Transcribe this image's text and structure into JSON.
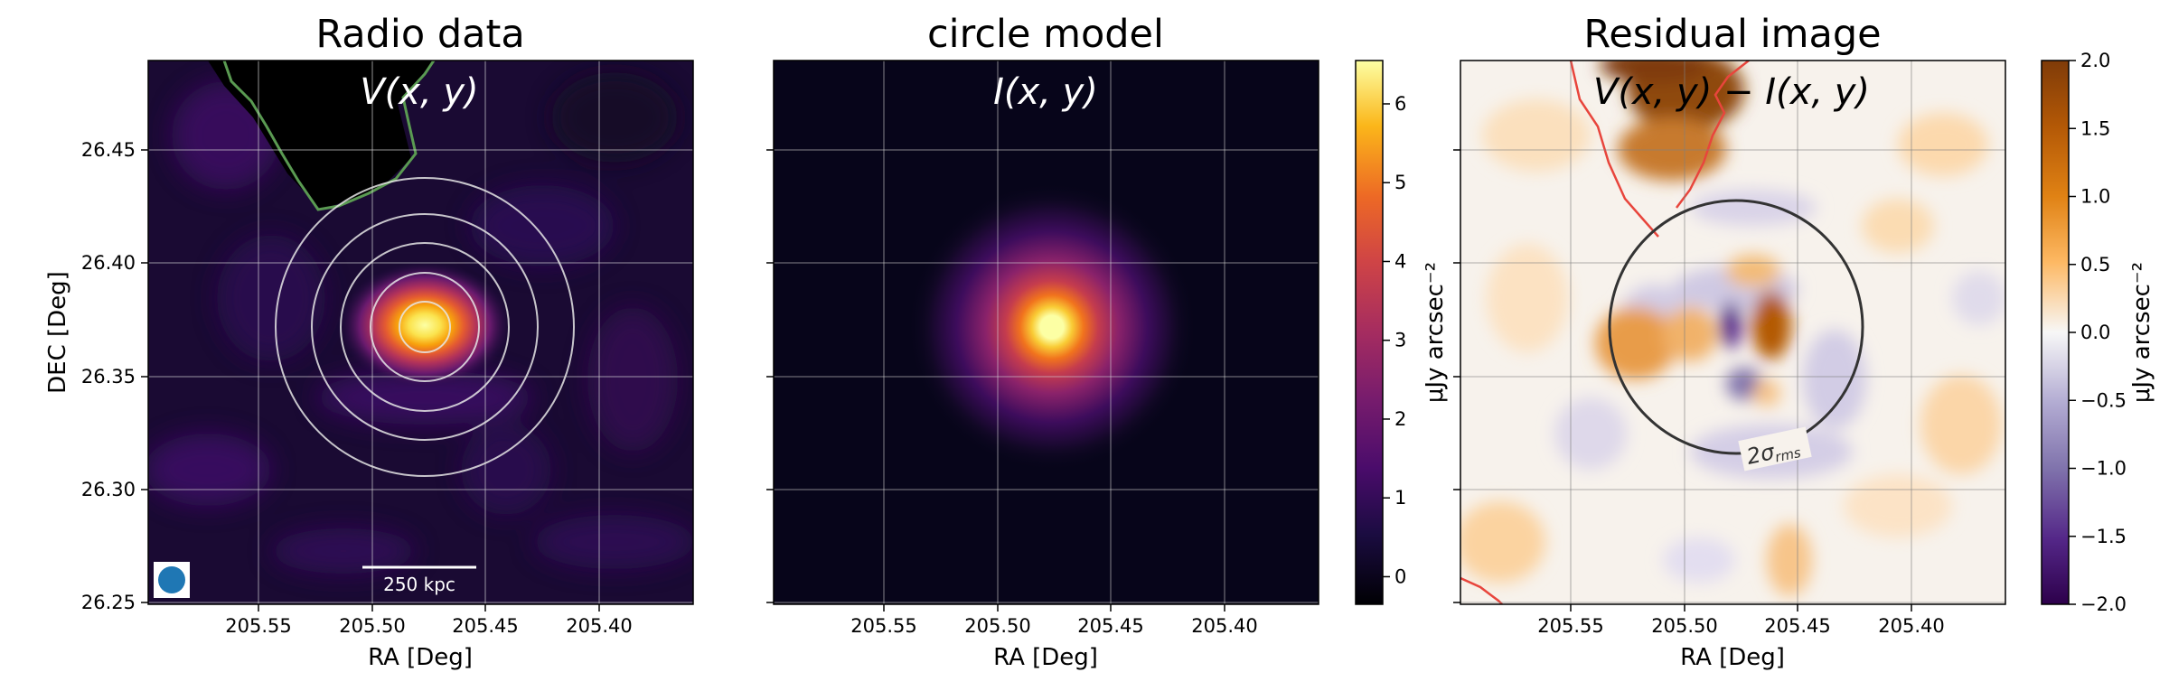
{
  "chart_data": [
    {
      "type": "heatmap",
      "title": "Radio data",
      "annotation": "V(x, y)",
      "xlabel": "RA [Deg]",
      "ylabel": "DEC [Deg]",
      "xlim": [
        205.605,
        205.345
      ],
      "ylim": [
        26.247,
        26.488
      ],
      "x_ticks": [
        205.55,
        205.5,
        205.45,
        205.4
      ],
      "y_ticks": [
        26.25,
        26.3,
        26.35,
        26.4,
        26.45
      ],
      "x_tick_labels": [
        "205.55",
        "205.50",
        "205.45",
        "205.40"
      ],
      "y_tick_labels": [
        "26.25",
        "26.30",
        "26.35",
        "26.40",
        "26.45"
      ],
      "grid": true,
      "colormap": "inferno",
      "source_center": {
        "ra": 205.473,
        "dec": 26.372
      },
      "contour_ring_radii_deg": [
        0.011,
        0.024,
        0.037,
        0.05,
        0.061
      ],
      "scalebar_label": "250 kpc",
      "beam": "filled-circle-lower-left"
    },
    {
      "type": "heatmap",
      "title": "circle model",
      "annotation": "I(x, y)",
      "xlabel": "RA [Deg]",
      "xlim": [
        205.605,
        205.345
      ],
      "ylim": [
        26.247,
        26.488
      ],
      "x_ticks": [
        205.55,
        205.5,
        205.45,
        205.4
      ],
      "x_tick_labels": [
        "205.55",
        "205.50",
        "205.45",
        "205.40"
      ],
      "grid": true,
      "colormap": "inferno",
      "colorbar": {
        "label": "μJy arcsec⁻²",
        "range": [
          -0.35,
          6.55
        ],
        "ticks": [
          0,
          1,
          2,
          3,
          4,
          5,
          6
        ],
        "tick_labels": [
          "0",
          "1",
          "2",
          "3",
          "4",
          "5",
          "6"
        ]
      }
    },
    {
      "type": "heatmap",
      "title": "Residual image",
      "annotation": "V(x, y) − I(x, y)",
      "xlabel": "RA [Deg]",
      "xlim": [
        205.605,
        205.345
      ],
      "ylim": [
        26.247,
        26.488
      ],
      "x_ticks": [
        205.55,
        205.5,
        205.45,
        205.4
      ],
      "x_tick_labels": [
        "205.55",
        "205.50",
        "205.45",
        "205.40"
      ],
      "grid": true,
      "colormap": "PuOr_r",
      "circle_label": "2σ",
      "circle_label_sub": "rms",
      "colorbar": {
        "label": "μJy arcsec⁻²",
        "range": [
          -2.0,
          2.0
        ],
        "ticks": [
          -2.0,
          -1.5,
          -1.0,
          -0.5,
          0.0,
          0.5,
          1.0,
          1.5,
          2.0
        ],
        "tick_labels": [
          "−2.0",
          "−1.5",
          "−1.0",
          "−0.5",
          "0.0",
          "0.5",
          "1.0",
          "1.5",
          "2.0"
        ]
      }
    }
  ]
}
